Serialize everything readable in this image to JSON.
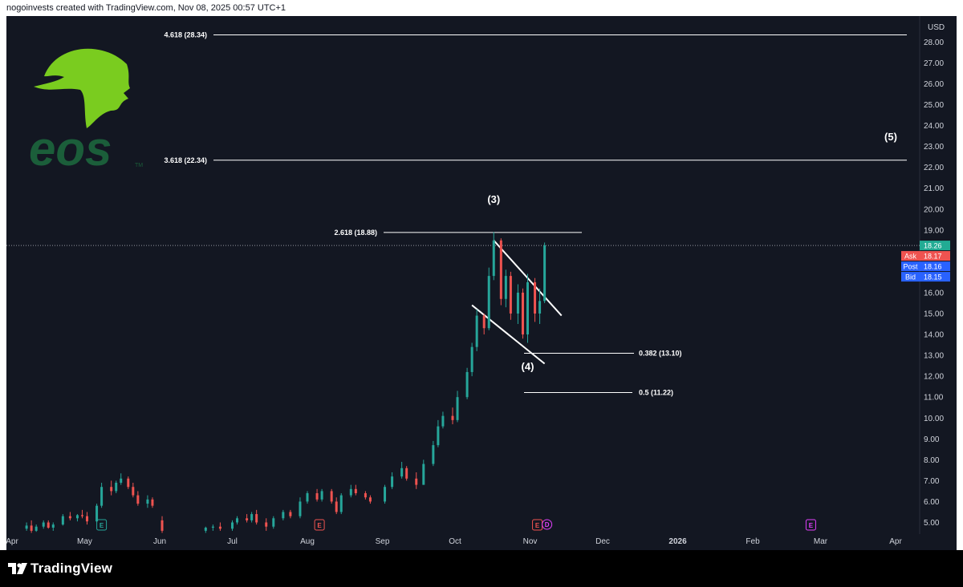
{
  "header": {
    "credit": "nogoinvests created with TradingView.com, Nov 08, 2025 00:57 UTC+1"
  },
  "brand": {
    "logo_text": "eos",
    "trademark": "TM",
    "logo_color": "#7acc1f",
    "text_color": "#1b5e3a"
  },
  "footer": {
    "logo_text": "TradingView"
  },
  "colors": {
    "background": "#131722",
    "up": "#26a69a",
    "down": "#ef5350",
    "ask": "#ef5350",
    "post": "#2962ff",
    "bid": "#2962ff",
    "last": "#22ab94",
    "events": "#e040fb"
  },
  "chart_data": {
    "type": "candlestick",
    "currency": "USD",
    "y_axis": {
      "scale": "linear",
      "ylim": [
        4.3,
        28.9
      ],
      "ticks": [
        "5.00",
        "6.00",
        "7.00",
        "8.00",
        "9.00",
        "10.00",
        "11.00",
        "12.00",
        "13.00",
        "14.00",
        "15.00",
        "16.00",
        "19.00",
        "20.00",
        "21.00",
        "22.00",
        "23.00",
        "24.00",
        "25.00",
        "26.00",
        "27.00",
        "28.00"
      ]
    },
    "x_axis": {
      "labels": [
        "Apr",
        "May",
        "Jun",
        "Jul",
        "Aug",
        "Sep",
        "Oct",
        "Nov",
        "Dec",
        "2026",
        "Feb",
        "Mar",
        "Apr"
      ],
      "label_dates": [
        "2025-04-01",
        "2025-05-01",
        "2025-06-01",
        "2025-07-01",
        "2025-08-01",
        "2025-09-01",
        "2025-10-01",
        "2025-11-01",
        "2025-12-01",
        "2026-01-01",
        "2026-02-01",
        "2026-03-01",
        "2026-04-01"
      ]
    },
    "candles": [
      [
        "2025-04-07",
        4.7,
        5.0,
        4.6,
        4.85
      ],
      [
        "2025-04-09",
        4.85,
        5.1,
        4.5,
        4.6
      ],
      [
        "2025-04-11",
        4.6,
        4.9,
        4.55,
        4.8
      ],
      [
        "2025-04-14",
        4.8,
        5.1,
        4.7,
        5.0
      ],
      [
        "2025-04-16",
        5.0,
        5.1,
        4.7,
        4.75
      ],
      [
        "2025-04-18",
        4.75,
        5.0,
        4.6,
        4.9
      ],
      [
        "2025-04-22",
        4.9,
        5.4,
        4.85,
        5.3
      ],
      [
        "2025-04-25",
        5.3,
        5.5,
        5.1,
        5.2
      ],
      [
        "2025-04-28",
        5.2,
        5.4,
        5.05,
        5.35
      ],
      [
        "2025-04-30",
        5.35,
        5.6,
        5.2,
        5.3
      ],
      [
        "2025-05-02",
        5.3,
        5.5,
        4.9,
        5.05
      ],
      [
        "2025-05-06",
        5.05,
        5.9,
        5.0,
        5.8
      ],
      [
        "2025-05-08",
        5.8,
        6.9,
        5.7,
        6.7
      ],
      [
        "2025-05-12",
        6.7,
        7.0,
        6.3,
        6.5
      ],
      [
        "2025-05-14",
        6.5,
        7.0,
        6.4,
        6.9
      ],
      [
        "2025-05-16",
        6.9,
        7.35,
        6.8,
        7.1
      ],
      [
        "2025-05-19",
        7.1,
        7.2,
        6.6,
        6.7
      ],
      [
        "2025-05-21",
        6.7,
        6.9,
        6.2,
        6.3
      ],
      [
        "2025-05-23",
        6.3,
        6.5,
        5.8,
        5.9
      ],
      [
        "2025-05-27",
        5.9,
        6.3,
        5.7,
        6.1
      ],
      [
        "2025-05-29",
        6.1,
        6.2,
        5.7,
        5.8
      ],
      [
        "2025-06-02",
        5.1,
        5.3,
        4.5,
        4.6
      ],
      [
        "2025-06-20",
        4.6,
        4.8,
        4.5,
        4.75
      ],
      [
        "2025-06-23",
        4.75,
        4.9,
        4.6,
        4.8
      ],
      [
        "2025-06-26",
        4.8,
        5.0,
        4.6,
        4.7
      ],
      [
        "2025-07-01",
        4.7,
        5.1,
        4.6,
        5.0
      ],
      [
        "2025-07-03",
        5.0,
        5.3,
        4.9,
        5.2
      ],
      [
        "2025-07-07",
        5.2,
        5.4,
        5.0,
        5.1
      ],
      [
        "2025-07-09",
        5.1,
        5.5,
        5.0,
        5.4
      ],
      [
        "2025-07-11",
        5.4,
        5.6,
        4.9,
        5.0
      ],
      [
        "2025-07-15",
        5.0,
        5.2,
        4.6,
        4.8
      ],
      [
        "2025-07-18",
        4.8,
        5.3,
        4.7,
        5.2
      ],
      [
        "2025-07-22",
        5.2,
        5.6,
        5.1,
        5.5
      ],
      [
        "2025-07-25",
        5.5,
        5.6,
        5.2,
        5.3
      ],
      [
        "2025-07-29",
        5.3,
        6.2,
        5.2,
        6.0
      ],
      [
        "2025-08-01",
        6.0,
        6.5,
        5.9,
        6.4
      ],
      [
        "2025-08-05",
        6.4,
        6.6,
        6.0,
        6.1
      ],
      [
        "2025-08-07",
        6.1,
        6.6,
        6.0,
        6.5
      ],
      [
        "2025-08-11",
        6.5,
        6.6,
        5.9,
        6.0
      ],
      [
        "2025-08-13",
        6.0,
        6.2,
        5.4,
        5.5
      ],
      [
        "2025-08-15",
        5.5,
        6.4,
        5.4,
        6.3
      ],
      [
        "2025-08-19",
        6.3,
        6.8,
        6.2,
        6.6
      ],
      [
        "2025-08-21",
        6.6,
        6.8,
        6.3,
        6.4
      ],
      [
        "2025-08-25",
        6.4,
        6.5,
        6.1,
        6.2
      ],
      [
        "2025-08-27",
        6.2,
        6.3,
        5.9,
        6.0
      ],
      [
        "2025-09-02",
        6.0,
        6.8,
        5.9,
        6.7
      ],
      [
        "2025-09-05",
        6.7,
        7.4,
        6.6,
        7.2
      ],
      [
        "2025-09-09",
        7.2,
        7.9,
        7.1,
        7.6
      ],
      [
        "2025-09-11",
        7.6,
        7.7,
        7.0,
        7.1
      ],
      [
        "2025-09-15",
        7.1,
        7.4,
        6.6,
        6.8
      ],
      [
        "2025-09-18",
        6.8,
        8.0,
        6.8,
        7.8
      ],
      [
        "2025-09-22",
        7.8,
        8.9,
        7.7,
        8.7
      ],
      [
        "2025-09-24",
        8.7,
        9.9,
        8.6,
        9.6
      ],
      [
        "2025-09-26",
        9.6,
        10.3,
        9.5,
        10.1
      ],
      [
        "2025-09-30",
        10.1,
        10.5,
        9.7,
        9.9
      ],
      [
        "2025-10-02",
        9.9,
        11.3,
        9.8,
        11.0
      ],
      [
        "2025-10-06",
        11.0,
        12.4,
        10.9,
        12.2
      ],
      [
        "2025-10-08",
        12.2,
        13.6,
        12.0,
        13.4
      ],
      [
        "2025-10-10",
        13.4,
        15.2,
        13.2,
        14.9
      ],
      [
        "2025-10-13",
        14.9,
        15.0,
        14.0,
        14.3
      ],
      [
        "2025-10-15",
        14.3,
        17.2,
        14.2,
        16.8
      ],
      [
        "2025-10-17",
        16.8,
        18.9,
        16.6,
        18.5
      ],
      [
        "2025-10-20",
        18.5,
        18.6,
        15.4,
        15.7
      ],
      [
        "2025-10-22",
        15.7,
        17.1,
        15.3,
        16.8
      ],
      [
        "2025-10-24",
        16.8,
        17.0,
        14.7,
        15.0
      ],
      [
        "2025-10-27",
        15.0,
        16.4,
        14.5,
        16.0
      ],
      [
        "2025-10-29",
        16.0,
        16.2,
        13.8,
        14.0
      ],
      [
        "2025-10-31",
        14.0,
        16.9,
        13.6,
        16.5
      ],
      [
        "2025-11-03",
        16.5,
        16.7,
        14.6,
        15.0
      ],
      [
        "2025-11-05",
        15.0,
        16.2,
        14.5,
        15.6
      ],
      [
        "2025-11-07",
        15.6,
        18.4,
        15.5,
        18.26
      ]
    ],
    "last_price": "18.26",
    "price_badges": [
      {
        "name": "Ask",
        "value": "18.17"
      },
      {
        "name": "Post",
        "value": "18.16"
      },
      {
        "name": "Bid",
        "value": "18.15"
      }
    ],
    "fib_levels": [
      {
        "label": "4.618 (28.34)",
        "price": 28.34
      },
      {
        "label": "3.618 (22.34)",
        "price": 22.34
      },
      {
        "label": "2.618 (18.88)",
        "price": 18.88
      },
      {
        "label": "0.382 (13.10)",
        "price": 13.1
      },
      {
        "label": "0.5 (11.22)",
        "price": 11.22
      }
    ],
    "wave_labels": [
      {
        "label": "(3)",
        "date": "2025-10-17",
        "price": 20.3
      },
      {
        "label": "(4)",
        "date": "2025-10-31",
        "price": 12.3
      },
      {
        "label": "(5)",
        "date": "2026-03-30",
        "price": 23.3
      }
    ],
    "channel": {
      "upper": [
        [
          "2025-10-17",
          18.5
        ],
        [
          "2025-11-14",
          14.9
        ]
      ],
      "lower": [
        [
          "2025-10-08",
          15.4
        ],
        [
          "2025-11-07",
          12.6
        ]
      ]
    },
    "events": [
      {
        "label": "E",
        "date": "2025-05-08"
      },
      {
        "label": "E",
        "date": "2025-08-06"
      },
      {
        "label": "E",
        "date": "2025-11-04"
      },
      {
        "label": "E",
        "date": "2026-02-25"
      }
    ],
    "dividend": {
      "label": "D",
      "date": "2025-11-08"
    }
  }
}
